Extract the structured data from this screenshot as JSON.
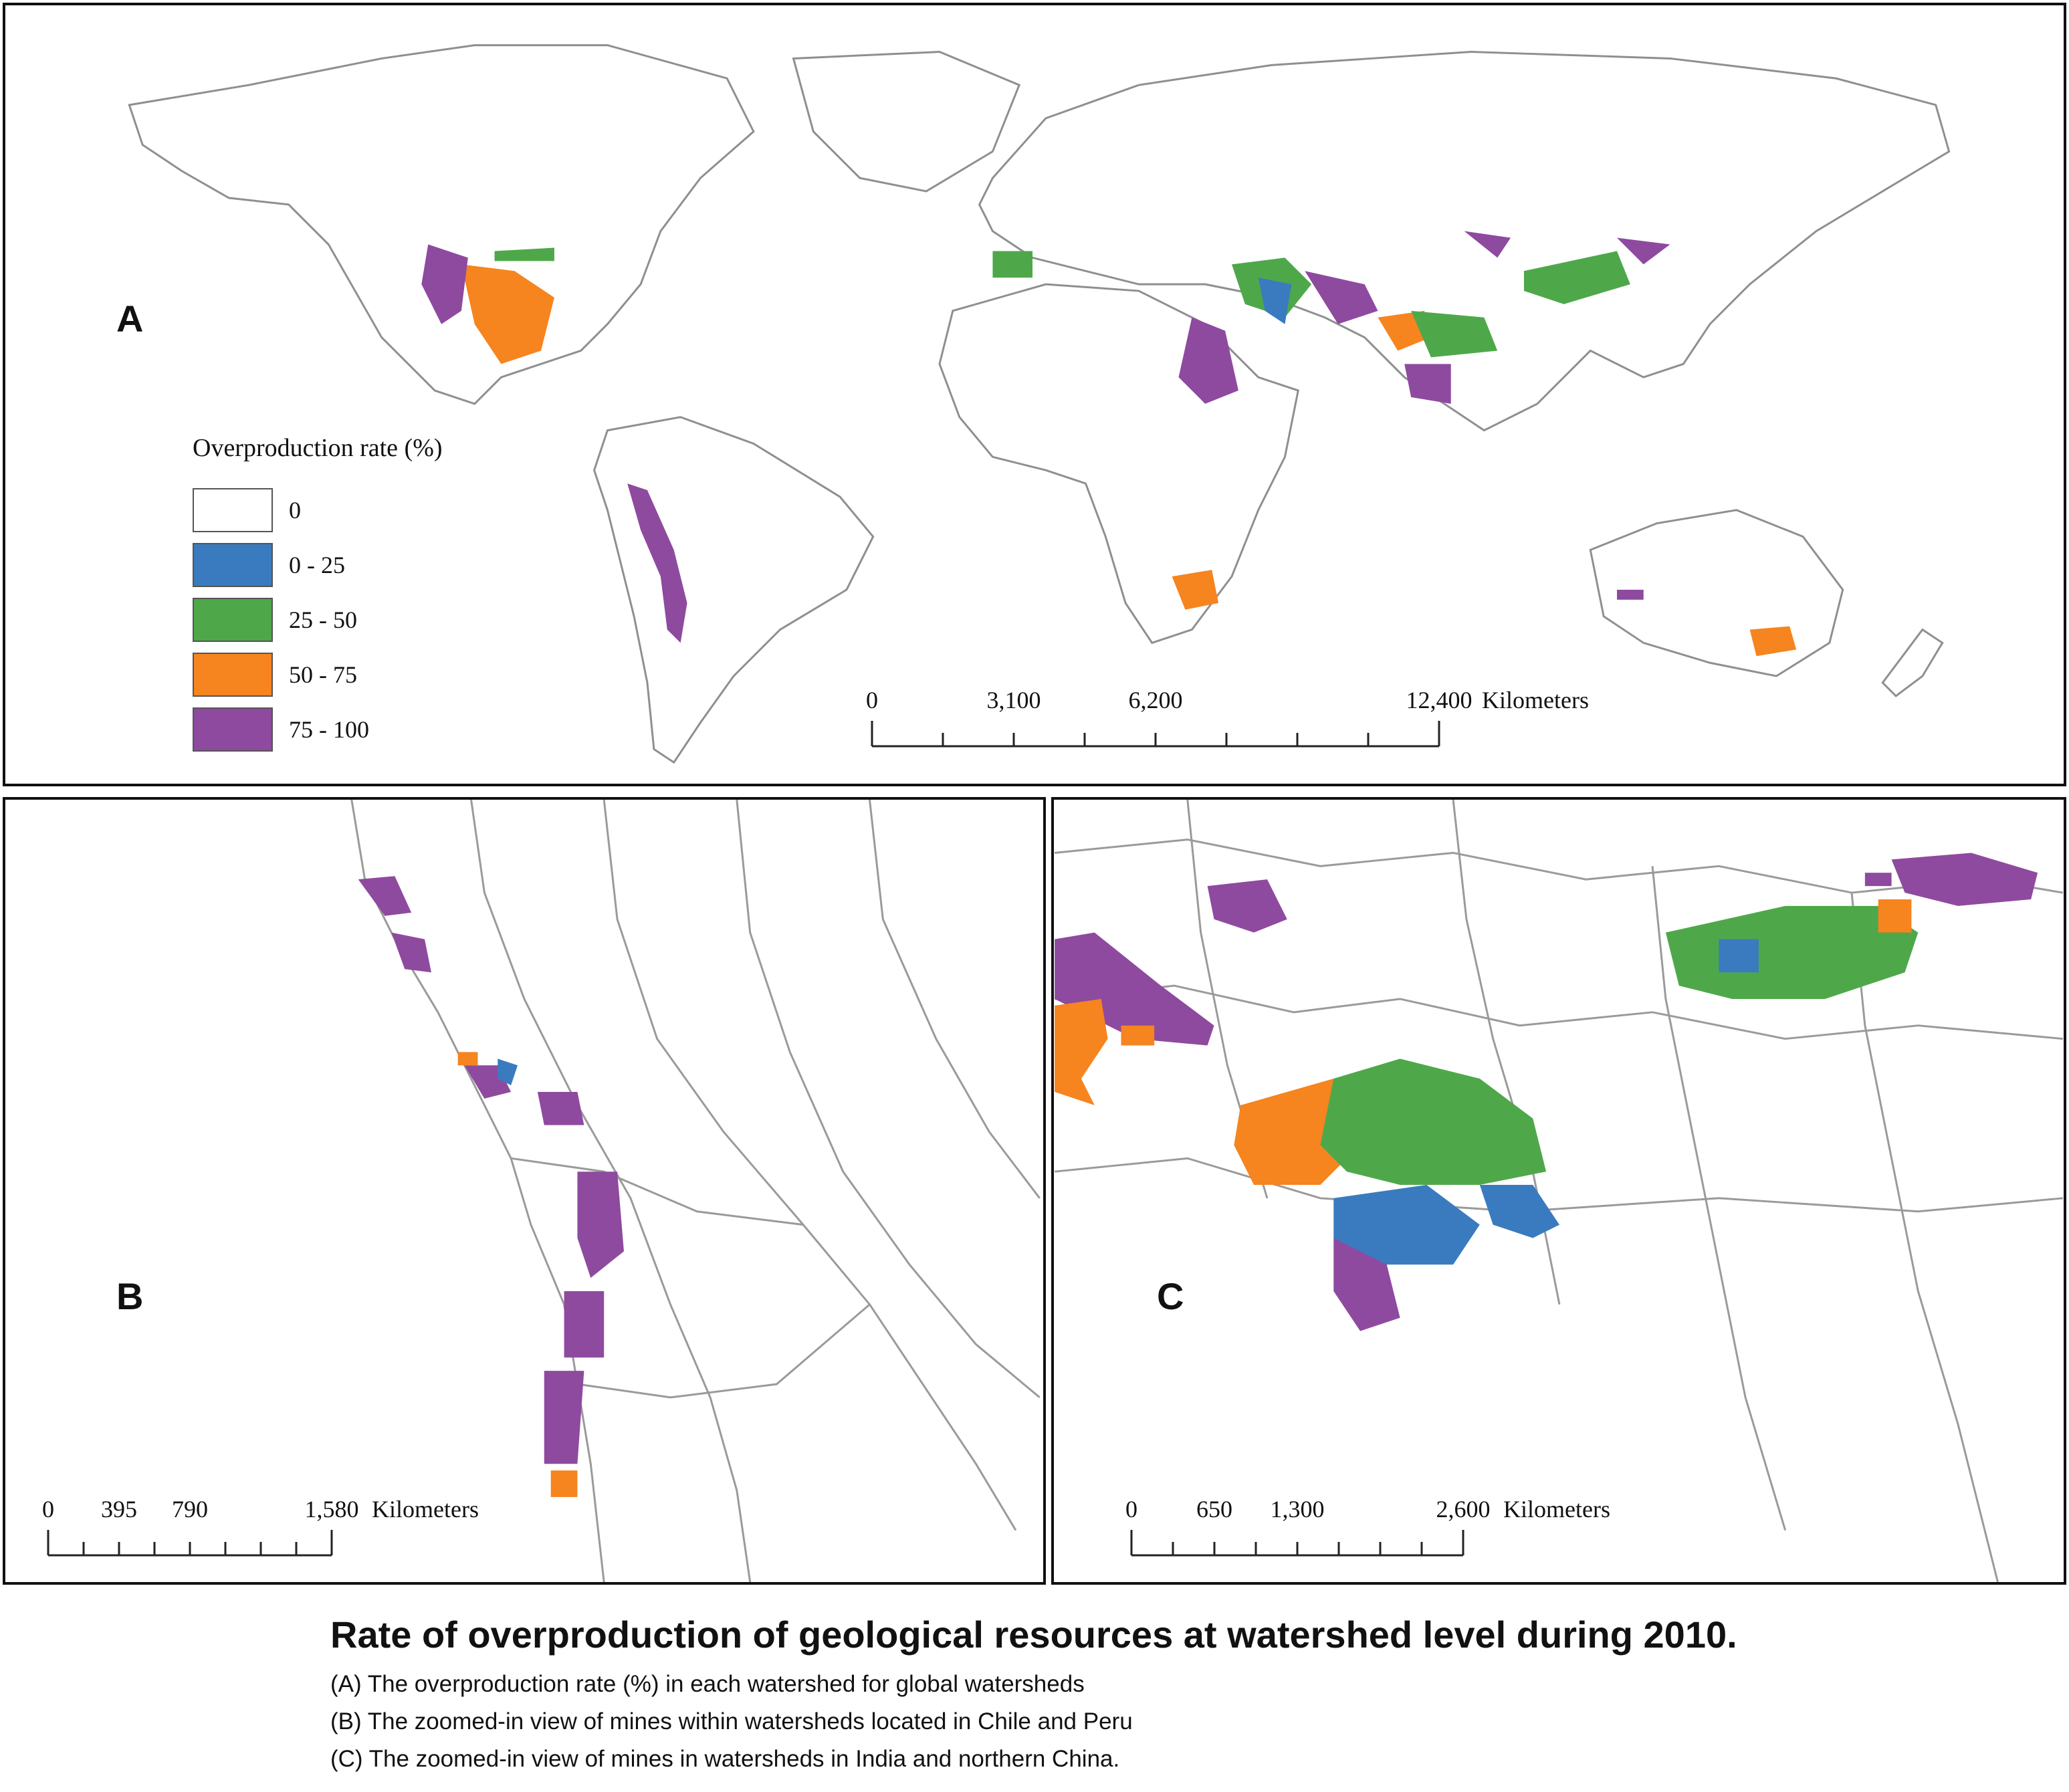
{
  "legend": {
    "title": "Overproduction rate (%)",
    "items": [
      {
        "label": "0",
        "color": "#ffffff"
      },
      {
        "label": "0 - 25",
        "color": "#3a7bbf"
      },
      {
        "label": "25 - 50",
        "color": "#4ea84a"
      },
      {
        "label": "50 - 75",
        "color": "#f6841f"
      },
      {
        "label": "75 - 100",
        "color": "#8e4a9f"
      }
    ]
  },
  "panels": {
    "A": {
      "letter": "A",
      "scale": {
        "labels": [
          "0",
          "3,100",
          "6,200",
          "12,400"
        ],
        "unit": "Kilometers"
      }
    },
    "B": {
      "letter": "B",
      "scale": {
        "labels": [
          "0",
          "395",
          "790",
          "1,580"
        ],
        "unit": "Kilometers"
      }
    },
    "C": {
      "letter": "C",
      "scale": {
        "labels": [
          "0",
          "650",
          "1,300",
          "2,600"
        ],
        "unit": "Kilometers"
      }
    }
  },
  "caption": {
    "title": "Rate of overproduction of geological resources at watershed level during 2010.",
    "lines": [
      "(A) The overproduction rate (%) in each watershed for global watersheds",
      "(B) The zoomed-in view of mines within watersheds located in Chile and Peru",
      "(C) The zoomed-in view of mines in watersheds in India and northern China."
    ]
  },
  "colors": {
    "blue": "#3a7bbf",
    "green": "#4ea84a",
    "orange": "#f6841f",
    "purple": "#8e4a9f",
    "outline": "#9a9a9a"
  }
}
